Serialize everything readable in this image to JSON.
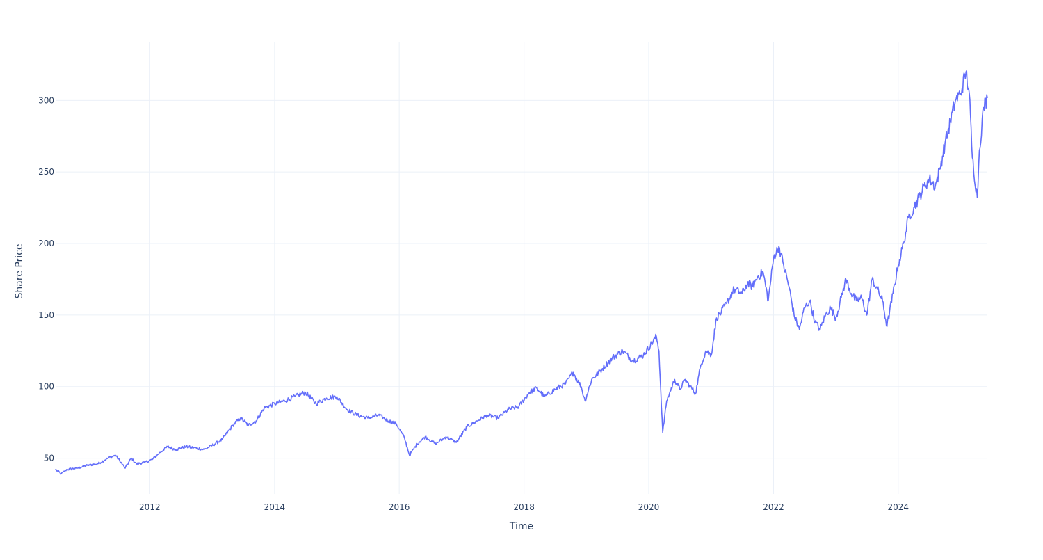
{
  "chart_data": {
    "type": "line",
    "title": "",
    "xlabel": "Time",
    "ylabel": "Share Price",
    "xlim": [
      "2010-06-29",
      "2025-06-06"
    ],
    "ylim": [
      25,
      341
    ],
    "x_ticks": [
      "2012",
      "2014",
      "2016",
      "2018",
      "2020",
      "2022",
      "2024"
    ],
    "y_ticks": [
      50,
      100,
      150,
      200,
      250,
      300
    ],
    "grid": true,
    "legend": "none",
    "line_color": "#636efa",
    "series": [
      {
        "x": [
          "2010-06-29",
          "2010-08-01",
          "2010-09-01",
          "2010-11-01",
          "2011-01-01",
          "2011-03-01",
          "2011-05-01",
          "2011-06-15",
          "2011-08-10",
          "2011-09-15",
          "2011-10-15",
          "2011-12-01",
          "2012-01-15",
          "2012-03-01",
          "2012-04-15",
          "2012-06-01",
          "2012-08-01",
          "2012-10-01",
          "2012-11-15",
          "2013-01-01",
          "2013-03-01",
          "2013-05-01",
          "2013-06-15",
          "2013-08-01",
          "2013-09-15",
          "2013-11-01",
          "2014-01-01",
          "2014-03-01",
          "2014-05-01",
          "2014-07-01",
          "2014-09-01",
          "2014-11-01",
          "2015-01-01",
          "2015-03-01",
          "2015-05-01",
          "2015-07-01",
          "2015-09-01",
          "2015-11-01",
          "2015-12-15",
          "2016-02-01",
          "2016-03-01",
          "2016-04-15",
          "2016-06-01",
          "2016-08-01",
          "2016-10-01",
          "2016-12-01",
          "2017-02-01",
          "2017-04-01",
          "2017-06-01",
          "2017-08-01",
          "2017-10-01",
          "2017-12-01",
          "2018-02-01",
          "2018-03-15",
          "2018-05-01",
          "2018-07-01",
          "2018-09-01",
          "2018-10-15",
          "2018-12-01",
          "2018-12-24",
          "2019-02-01",
          "2019-04-01",
          "2019-06-01",
          "2019-08-01",
          "2019-10-01",
          "2019-12-01",
          "2020-02-15",
          "2020-03-01",
          "2020-03-23",
          "2020-04-15",
          "2020-05-01",
          "2020-06-01",
          "2020-07-01",
          "2020-08-01",
          "2020-09-01",
          "2020-10-01",
          "2020-11-01",
          "2020-12-01",
          "2021-01-01",
          "2021-02-01",
          "2021-03-01",
          "2021-04-01",
          "2021-05-15",
          "2021-07-01",
          "2021-08-01",
          "2021-09-01",
          "2021-10-01",
          "2021-11-01",
          "2021-12-01",
          "2022-01-01",
          "2022-02-01",
          "2022-03-01",
          "2022-04-01",
          "2022-05-01",
          "2022-06-01",
          "2022-07-01",
          "2022-08-01",
          "2022-09-01",
          "2022-10-01",
          "2022-11-01",
          "2022-12-01",
          "2023-01-01",
          "2023-02-01",
          "2023-03-01",
          "2023-04-01",
          "2023-05-01",
          "2023-06-01",
          "2023-07-01",
          "2023-08-01",
          "2023-09-01",
          "2023-10-01",
          "2023-10-27",
          "2023-12-01",
          "2024-01-01",
          "2024-02-01",
          "2024-03-01",
          "2024-04-01",
          "2024-05-01",
          "2024-06-01",
          "2024-07-01",
          "2024-08-05",
          "2024-09-01",
          "2024-10-01",
          "2024-11-01",
          "2024-12-01",
          "2025-01-01",
          "2025-02-01",
          "2025-02-20",
          "2025-03-10",
          "2025-04-08",
          "2025-04-20",
          "2025-05-15",
          "2025-06-06"
        ],
        "y": [
          42,
          39,
          42,
          43,
          45,
          46,
          50,
          52,
          43,
          50,
          46,
          47,
          49,
          54,
          58,
          56,
          58,
          57,
          56,
          59,
          63,
          73,
          78,
          73,
          76,
          85,
          88,
          90,
          93,
          96,
          88,
          92,
          93,
          84,
          80,
          78,
          80,
          76,
          74,
          64,
          52,
          60,
          65,
          60,
          65,
          61,
          72,
          76,
          80,
          78,
          84,
          86,
          96,
          99,
          93,
          98,
          102,
          110,
          100,
          90,
          105,
          112,
          120,
          125,
          118,
          122,
          135,
          125,
          68,
          90,
          95,
          105,
          98,
          105,
          100,
          95,
          115,
          125,
          122,
          148,
          152,
          158,
          168,
          165,
          172,
          170,
          177,
          180,
          160,
          190,
          198,
          185,
          170,
          150,
          140,
          155,
          160,
          145,
          140,
          150,
          155,
          148,
          162,
          175,
          165,
          160,
          162,
          150,
          175,
          168,
          160,
          142,
          165,
          185,
          200,
          218,
          225,
          232,
          240,
          245,
          240,
          252,
          270,
          285,
          300,
          305,
          320,
          305,
          260,
          232,
          265,
          295,
          302
        ]
      }
    ]
  }
}
